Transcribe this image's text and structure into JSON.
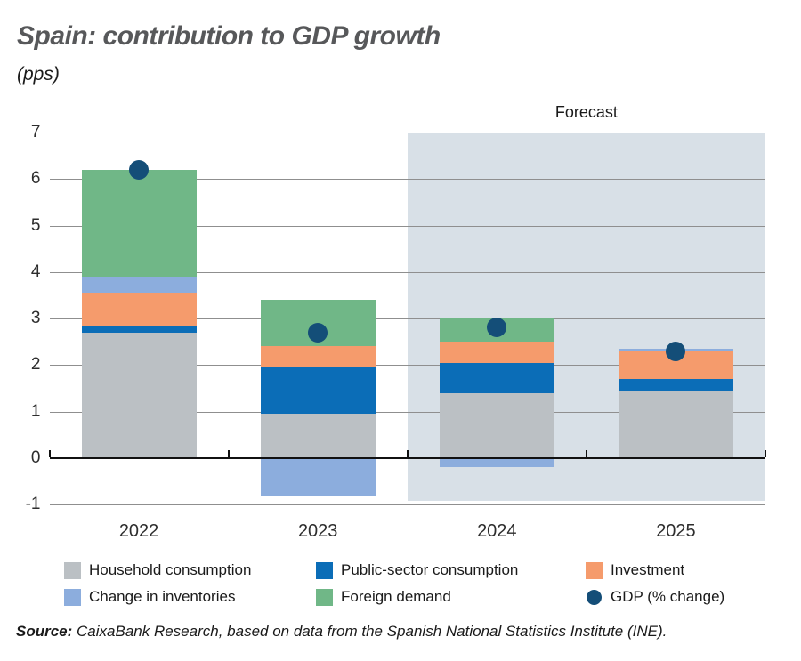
{
  "header": {
    "title": "Spain: contribution to GDP growth",
    "subtitle": "(pps)"
  },
  "forecast_label": "Forecast",
  "source": {
    "prefix": "Source:",
    "text": " CaixaBank Research, based on data from the Spanish National Statistics Institute (INE)."
  },
  "colors": {
    "household": "#bbc0c4",
    "public": "#0b6db7",
    "investment": "#f59b6c",
    "inventories": "#8caddd",
    "foreign": "#70b787",
    "gdp_dot": "#144e78",
    "forecast_bg": "#d8e0e7",
    "gridline": "#8f8f8f",
    "zero_line": "#111111",
    "title": "#57585a"
  },
  "chart_data": {
    "type": "bar",
    "stacked": true,
    "title": "Spain: contribution to GDP growth",
    "units": "pps",
    "xlabel": "",
    "ylabel": "",
    "categories": [
      "2022",
      "2023",
      "2024",
      "2025"
    ],
    "series": [
      {
        "name": "Household consumption",
        "color_key": "household",
        "values": [
          2.7,
          0.95,
          1.4,
          1.45
        ]
      },
      {
        "name": "Public-sector consumption",
        "color_key": "public",
        "values": [
          0.15,
          1.0,
          0.65,
          0.25
        ]
      },
      {
        "name": "Investment",
        "color_key": "investment",
        "values": [
          0.7,
          0.45,
          0.45,
          0.6
        ]
      },
      {
        "name": "Change in inventories",
        "color_key": "inventories",
        "values": [
          0.35,
          -0.8,
          -0.2,
          0.05
        ]
      },
      {
        "name": "Foreign demand",
        "color_key": "foreign",
        "values": [
          2.3,
          1.0,
          0.5,
          0.0
        ]
      }
    ],
    "dot_series": {
      "name": "GDP (% change)",
      "color_key": "gdp_dot",
      "values": [
        6.2,
        2.7,
        2.8,
        2.3
      ]
    },
    "ylim": [
      -1,
      7
    ],
    "yticks": [
      7,
      6,
      5,
      4,
      3,
      2,
      1,
      0,
      -1
    ],
    "grid": true,
    "forecast_categories": [
      "2024",
      "2025"
    ],
    "legend_position": "bottom"
  },
  "legend": {
    "rows": [
      [
        {
          "label": "Household consumption",
          "marker": "square",
          "color_key": "household"
        },
        {
          "label": "Public-sector consumption",
          "marker": "square",
          "color_key": "public"
        },
        {
          "label": "Investment",
          "marker": "square",
          "color_key": "investment"
        }
      ],
      [
        {
          "label": "Change in inventories",
          "marker": "square",
          "color_key": "inventories"
        },
        {
          "label": "Foreign demand",
          "marker": "square",
          "color_key": "foreign"
        },
        {
          "label": "GDP (% change)",
          "marker": "circle",
          "color_key": "gdp_dot"
        }
      ]
    ]
  }
}
